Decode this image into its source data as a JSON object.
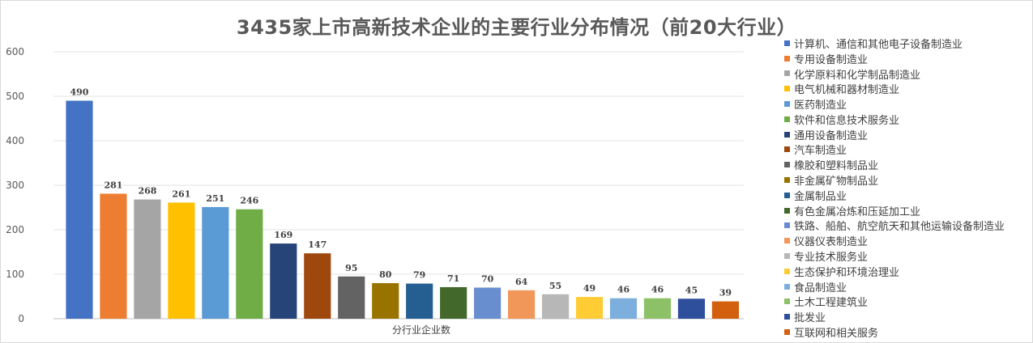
{
  "chart_data": {
    "type": "bar",
    "title": "3435家上市高新技术企业的主要行业分布情况（前20大行业）",
    "xlabel": "分行业企业数",
    "ylabel": "",
    "ylim": [
      0,
      600
    ],
    "yticks": [
      "0",
      "100",
      "200",
      "300",
      "400",
      "500",
      "600"
    ],
    "grid": true,
    "legend_position": "right",
    "categories": [
      "计算机、通信和其他电子设备制造业",
      "专用设备制造业",
      "化学原料和化学制品制造业",
      "电气机械和器材制造业",
      "医药制造业",
      "软件和信息技术服务业",
      "通用设备制造业",
      "汽车制造业",
      "橡胶和塑料制品业",
      "非金属矿物制品业",
      "金属制品业",
      "有色金属冶炼和压延加工业",
      "铁路、船舶、航空航天和其他运输设备制造业",
      "仪器仪表制造业",
      "专业技术服务业",
      "生态保护和环境治理业",
      "食品制造业",
      "土木工程建筑业",
      "批发业",
      "互联网和相关服务"
    ],
    "values": [
      490,
      281,
      268,
      261,
      251,
      246,
      169,
      147,
      95,
      80,
      79,
      71,
      70,
      64,
      55,
      49,
      46,
      46,
      45,
      39
    ],
    "value_labels": [
      "490",
      "281",
      "268",
      "261",
      "251",
      "246",
      "169",
      "147",
      "95",
      "80",
      "79",
      "71",
      "70",
      "64",
      "55",
      "49",
      "46",
      "46",
      "45",
      "39"
    ],
    "colors": [
      "#4472C4",
      "#ED7D31",
      "#A5A5A5",
      "#FFC000",
      "#5B9BD5",
      "#70AD47",
      "#264478",
      "#9E480E",
      "#636363",
      "#997300",
      "#255E91",
      "#43682B",
      "#698ED0",
      "#F1975A",
      "#B7B7B7",
      "#FFCD33",
      "#7CAFDD",
      "#8CC168",
      "#2E4F9C",
      "#D2600F"
    ]
  }
}
